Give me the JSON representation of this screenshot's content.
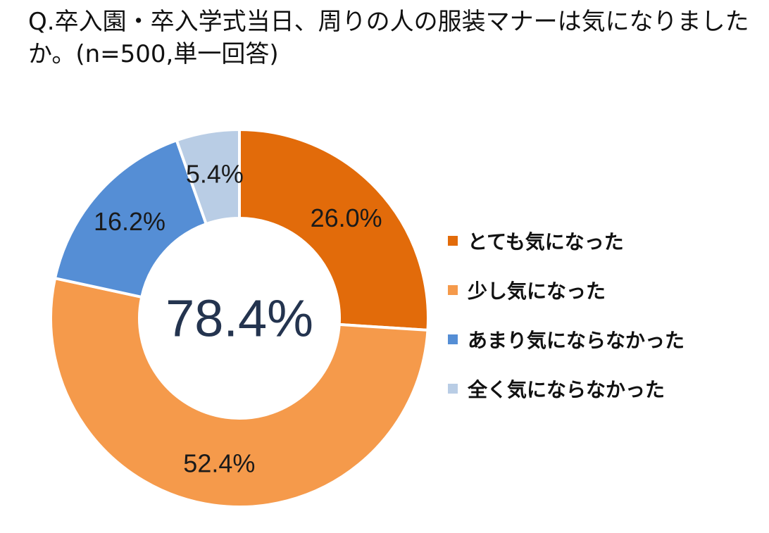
{
  "chart_data": {
    "type": "pie",
    "title": "Q.卒入園・卒入学式当日、周りの人の服装マナーは気になりましたか。(n=500,単一回答)",
    "categories": [
      "とても気になった",
      "少し気になった",
      "あまり気にならなかった",
      "全く気にならなかった"
    ],
    "values": [
      26.0,
      52.4,
      16.2,
      5.4
    ],
    "value_labels": [
      "26.0%",
      "52.4%",
      "16.2%",
      "5.4%"
    ],
    "colors": [
      "#e26b0a",
      "#f59a4b",
      "#558ed5",
      "#b9cde5"
    ],
    "center_label": "78.4%",
    "donut": true,
    "start_angle": "12 o'clock",
    "direction": "clockwise",
    "legend_position": "right"
  }
}
